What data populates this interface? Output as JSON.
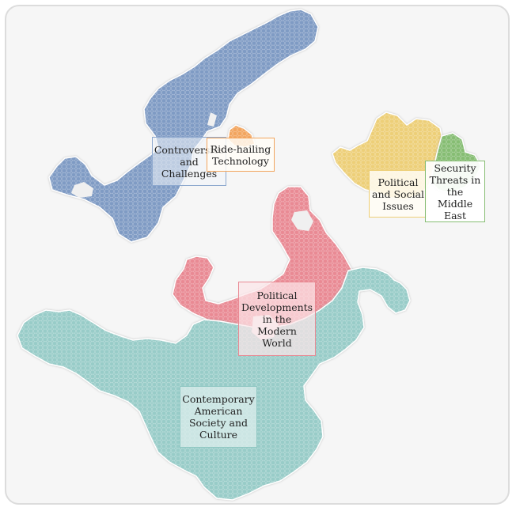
{
  "regions": [
    {
      "id": "controversies",
      "label": "Controversies and Challenges",
      "color": "#7f9bc4"
    },
    {
      "id": "ride-hailing",
      "label": "Ride-hailing Technology",
      "color": "#f2a55e"
    },
    {
      "id": "political-social",
      "label": "Political and Social Issues",
      "color": "#edcf78"
    },
    {
      "id": "security",
      "label": "Security Threats in the Middle East",
      "color": "#86bd73"
    },
    {
      "id": "political-dev",
      "label": "Political Developments in the Modern World",
      "color": "#e98a94"
    },
    {
      "id": "american-society",
      "label": "Contemporary American Society and Culture",
      "color": "#98ccc8"
    }
  ]
}
